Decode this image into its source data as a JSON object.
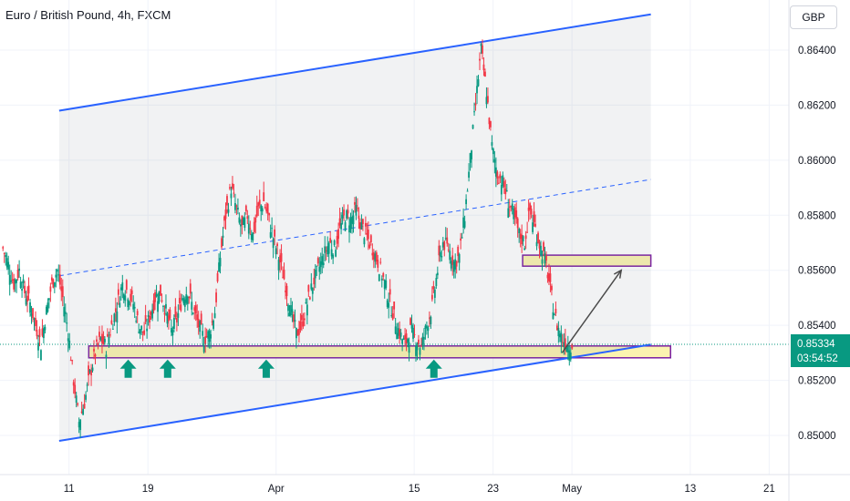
{
  "header": {
    "title": "Euro / British Pound, 4h, FXCM",
    "currency_button": "GBP"
  },
  "price_tag": {
    "price": "0.85334",
    "countdown": "03:54:52",
    "color": "#089981"
  },
  "colors": {
    "up": "#089981",
    "down": "#f23645",
    "channel": "#2962ff",
    "zone_fill": "#fbf3b0",
    "zone_border": "#7b1fa2",
    "arrow": "#089981",
    "projection": "#4a4a4a"
  },
  "chart_data": {
    "type": "candlestick",
    "title": "Euro / British Pound, 4h, FXCM",
    "y_ticks": [
      "0.86400",
      "0.86200",
      "0.86000",
      "0.85800",
      "0.85600",
      "0.85400",
      "0.85200",
      "0.85000"
    ],
    "y_tick_values": [
      0.864,
      0.862,
      0.86,
      0.858,
      0.856,
      0.854,
      0.852,
      0.85
    ],
    "ylim": [
      0.8489,
      0.8658
    ],
    "x_ticks": [
      "11",
      "19",
      "Apr",
      "15",
      "23",
      "May",
      "13",
      "21"
    ],
    "x_tick_dates": [
      "2024-03-11",
      "2024-03-19",
      "2024-04-01",
      "2024-04-15",
      "2024-04-23",
      "2024-05-01",
      "2024-05-13",
      "2024-05-21"
    ],
    "xlim": [
      "2024-03-04",
      "2024-05-23"
    ],
    "grid": true,
    "closes": [
      0.8568,
      0.8562,
      0.8555,
      0.856,
      0.8552,
      0.8548,
      0.854,
      0.8533,
      0.8545,
      0.8555,
      0.856,
      0.855,
      0.8538,
      0.852,
      0.8505,
      0.8512,
      0.8522,
      0.853,
      0.8535,
      0.8532,
      0.854,
      0.8547,
      0.8555,
      0.8552,
      0.8548,
      0.854,
      0.8537,
      0.8543,
      0.855,
      0.8552,
      0.8545,
      0.8538,
      0.8542,
      0.855,
      0.8553,
      0.8546,
      0.854,
      0.8535,
      0.8537,
      0.8545,
      0.8565,
      0.858,
      0.859,
      0.8582,
      0.8575,
      0.858,
      0.8573,
      0.8582,
      0.8585,
      0.8578,
      0.857,
      0.8563,
      0.8555,
      0.8545,
      0.8537,
      0.854,
      0.8548,
      0.8555,
      0.856,
      0.8565,
      0.857,
      0.8568,
      0.8575,
      0.858,
      0.8578,
      0.8582,
      0.8576,
      0.8572,
      0.8568,
      0.8563,
      0.8557,
      0.855,
      0.8543,
      0.8537,
      0.8533,
      0.8538,
      0.8535,
      0.8532,
      0.854,
      0.8547,
      0.856,
      0.857,
      0.8568,
      0.8563,
      0.8565,
      0.858,
      0.86,
      0.862,
      0.864,
      0.8625,
      0.8605,
      0.8595,
      0.8592,
      0.8585,
      0.858,
      0.8573,
      0.857,
      0.8582,
      0.8575,
      0.8568,
      0.8562,
      0.855,
      0.854,
      0.8535,
      0.8533
    ],
    "support_zone": [
      0.85282,
      0.85325
    ],
    "resistance_zone": [
      0.85615,
      0.85655
    ],
    "channel_upper": [
      {
        "x": "2024-03-10",
        "y": 0.8618
      },
      {
        "x": "2024-05-09",
        "y": 0.8653
      }
    ],
    "channel_mid": [
      {
        "x": "2024-03-10",
        "y": 0.8558
      },
      {
        "x": "2024-05-09",
        "y": 0.8593
      }
    ],
    "channel_lower": [
      {
        "x": "2024-03-10",
        "y": 0.8498
      },
      {
        "x": "2024-05-09",
        "y": 0.8533
      }
    ],
    "projection_arrow": [
      {
        "x": "2024-04-30",
        "y": 0.853
      },
      {
        "x": "2024-05-06",
        "y": 0.856
      }
    ],
    "buy_arrows": [
      "2024-03-17",
      "2024-03-21",
      "2024-03-31",
      "2024-04-17"
    ]
  }
}
